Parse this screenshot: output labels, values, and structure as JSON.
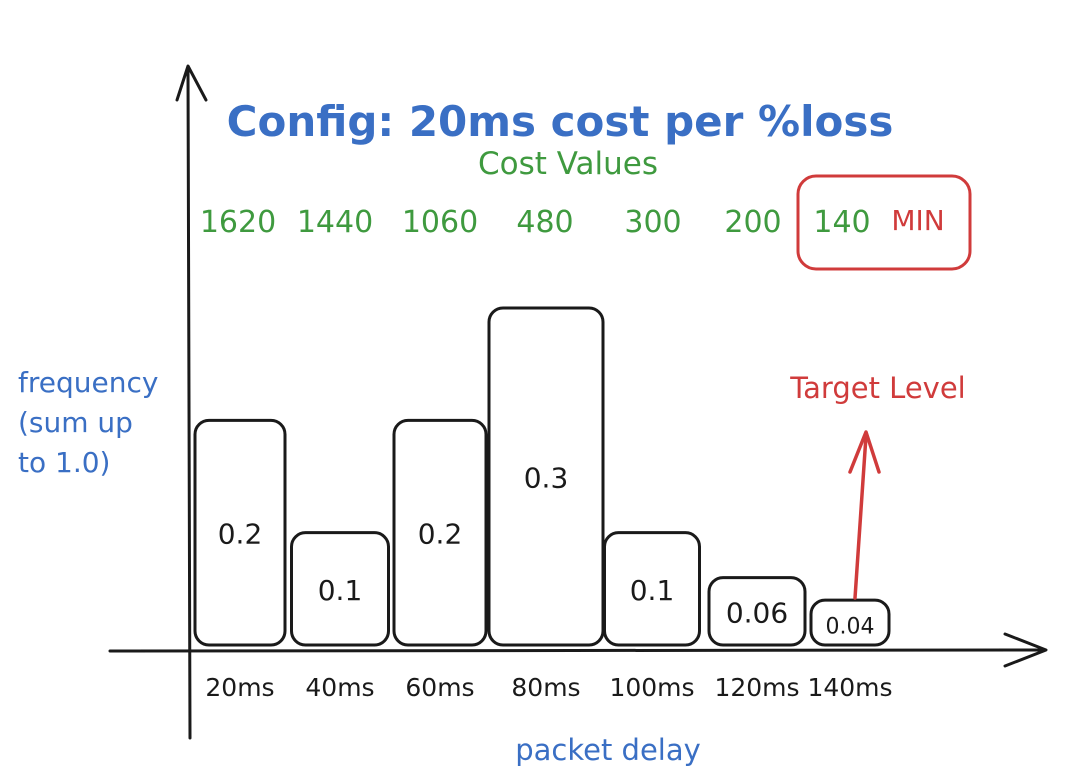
{
  "colors": {
    "blue": "#3a6fc4",
    "green": "#3f9a3f",
    "red": "#d03b3b",
    "ink": "#1a1a1a"
  },
  "annotations": {
    "config": "Config: 20ms cost per %loss",
    "cost_heading": "Cost Values",
    "min_label": "MIN",
    "target_label": "Target Level",
    "ylabel_lines": [
      "frequency",
      "(sum up",
      "to 1.0)"
    ]
  },
  "chart_data": {
    "type": "bar",
    "title": "",
    "xlabel": "packet delay",
    "ylabel": "frequency (sum up to 1.0)",
    "categories": [
      "20ms",
      "40ms",
      "60ms",
      "80ms",
      "100ms",
      "120ms",
      "140ms"
    ],
    "values": [
      0.2,
      0.1,
      0.2,
      0.3,
      0.1,
      0.06,
      0.04
    ],
    "value_labels": [
      "0.2",
      "0.1",
      "0.2",
      "0.3",
      "0.1",
      "0.06",
      "0.04"
    ],
    "cost_values": [
      "1620",
      "1440",
      "1060",
      "480",
      "300",
      "200",
      "140"
    ],
    "min_index": 6,
    "target_index": 6,
    "ylim": [
      0,
      0.34
    ],
    "grid": false,
    "legend": "none"
  }
}
